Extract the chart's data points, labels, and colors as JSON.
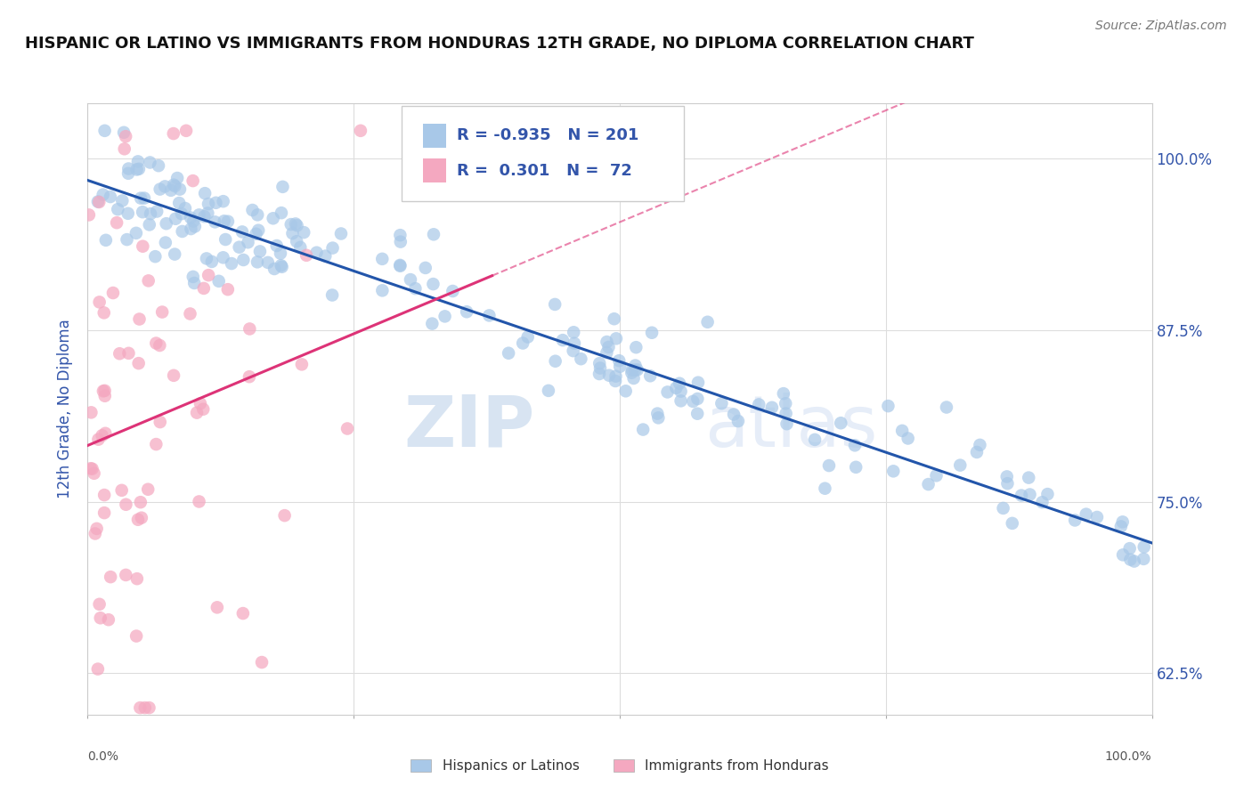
{
  "title": "HISPANIC OR LATINO VS IMMIGRANTS FROM HONDURAS 12TH GRADE, NO DIPLOMA CORRELATION CHART",
  "source": "Source: ZipAtlas.com",
  "ylabel": "12th Grade, No Diploma",
  "xlim": [
    0.0,
    1.0
  ],
  "ylim": [
    0.595,
    1.04
  ],
  "yticks": [
    0.625,
    0.75,
    0.875,
    1.0
  ],
  "ytick_labels": [
    "62.5%",
    "75.0%",
    "87.5%",
    "100.0%"
  ],
  "legend_r1": "-0.935",
  "legend_n1": "201",
  "legend_r2": "0.301",
  "legend_n2": "72",
  "blue_color": "#a8c8e8",
  "pink_color": "#f4a8c0",
  "blue_line_color": "#2255aa",
  "pink_line_color": "#dd3377",
  "pink_dash_color": "#dd3377",
  "title_color": "#111111",
  "source_color": "#777777",
  "label_color": "#3355aa",
  "watermark_color": "#d0dff0",
  "background_color": "#ffffff",
  "grid_color": "#dddddd"
}
